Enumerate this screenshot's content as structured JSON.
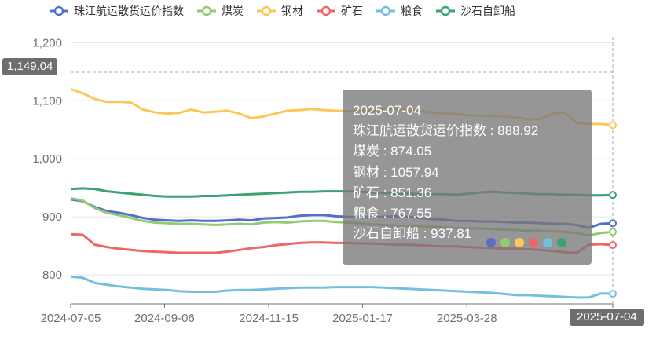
{
  "chart_data": {
    "type": "line",
    "x_start": "2024-07-05",
    "x_end": "2025-07-04",
    "x_tick_labels": [
      "2024-07-05",
      "2024-09-06",
      "2024-11-15",
      "2025-01-17",
      "2025-03-28"
    ],
    "ylim": [
      750,
      1210
    ],
    "y_ticks": [
      800,
      900,
      1000,
      1100,
      1200
    ],
    "y_tick_labels": [
      "800",
      "900",
      "1,000",
      "1,100",
      "1,200"
    ],
    "grid": true,
    "legend_placement": "top",
    "crosshair": {
      "x_label": "2025-07-04",
      "y_label": "1,149.04",
      "y_value": 1149.04
    },
    "series": [
      {
        "name": "珠江航运散货运价指数",
        "color": "#5470c6",
        "values": [
          930,
          927,
          917,
          910,
          907,
          903,
          898,
          895,
          894,
          893,
          894,
          893,
          893,
          894,
          895,
          894,
          897,
          898,
          899,
          902,
          903,
          903,
          901,
          900,
          899,
          899,
          900,
          901,
          900,
          898,
          896,
          895,
          893,
          893,
          892,
          892,
          891,
          890,
          890,
          889,
          888,
          888,
          886,
          881,
          888,
          888.92
        ]
      },
      {
        "name": "煤炭",
        "color": "#91cc75",
        "values": [
          932,
          928,
          915,
          907,
          903,
          898,
          893,
          890,
          889,
          888,
          888,
          887,
          886,
          887,
          888,
          887,
          890,
          891,
          890,
          892,
          893,
          893,
          891,
          890,
          889,
          887,
          886,
          885,
          884,
          884,
          883,
          882,
          881,
          880,
          880,
          879,
          878,
          877,
          876,
          876,
          875,
          874,
          872,
          868,
          872,
          874.05
        ]
      },
      {
        "name": "钢材",
        "color": "#fac858",
        "values": [
          1120,
          1113,
          1103,
          1098,
          1098,
          1097,
          1085,
          1080,
          1078,
          1079,
          1085,
          1080,
          1081,
          1083,
          1078,
          1070,
          1073,
          1078,
          1083,
          1084,
          1086,
          1084,
          1083,
          1082,
          1083,
          1083,
          1086,
          1086,
          1084,
          1082,
          1080,
          1078,
          1077,
          1075,
          1074,
          1074,
          1073,
          1071,
          1068,
          1069,
          1078,
          1080,
          1062,
          1060,
          1060,
          1057.94
        ]
      },
      {
        "name": "矿石",
        "color": "#ee6666",
        "values": [
          870,
          869,
          852,
          848,
          845,
          843,
          841,
          840,
          839,
          838,
          838,
          838,
          838,
          840,
          843,
          846,
          848,
          851,
          853,
          855,
          856,
          856,
          855,
          855,
          854,
          854,
          853,
          852,
          852,
          851,
          850,
          849,
          849,
          848,
          847,
          846,
          845,
          845,
          844,
          843,
          841,
          839,
          838,
          852,
          853,
          851.36
        ]
      },
      {
        "name": "粮食",
        "color": "#73c0de",
        "values": [
          797,
          795,
          786,
          783,
          780,
          778,
          776,
          775,
          774,
          772,
          771,
          771,
          771,
          773,
          774,
          774,
          775,
          776,
          777,
          778,
          778,
          778,
          779,
          779,
          779,
          779,
          778,
          777,
          776,
          775,
          774,
          773,
          772,
          771,
          770,
          769,
          767,
          765,
          765,
          764,
          763,
          762,
          761,
          761,
          768,
          767.55
        ]
      },
      {
        "name": "沙石自卸船",
        "color": "#3ba272",
        "values": [
          948,
          949,
          948,
          944,
          942,
          940,
          938,
          936,
          935,
          935,
          935,
          936,
          936,
          937,
          938,
          939,
          940,
          941,
          942,
          943,
          943,
          944,
          944,
          944,
          943,
          942,
          941,
          940,
          940,
          939,
          939,
          939,
          938,
          940,
          942,
          943,
          942,
          941,
          940,
          939,
          939,
          938,
          938,
          937,
          937,
          937.81
        ]
      }
    ]
  },
  "tooltip": {
    "date": "2025-07-04",
    "rows": [
      {
        "label": "珠江航运散货运价指数",
        "value": "888.92"
      },
      {
        "label": "煤炭",
        "value": "874.05"
      },
      {
        "label": "钢材",
        "value": "1057.94"
      },
      {
        "label": "矿石",
        "value": "851.36"
      },
      {
        "label": "粮食",
        "value": "767.55"
      },
      {
        "label": "沙石自卸船",
        "value": "937.81"
      }
    ]
  }
}
